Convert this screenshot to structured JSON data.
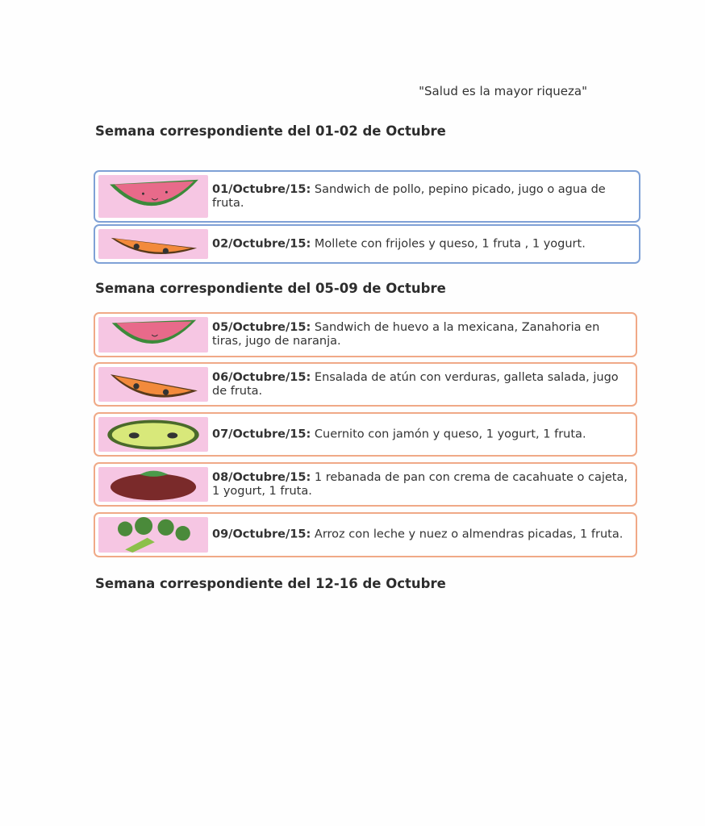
{
  "quote": "\"Salud es la mayor riqueza\"",
  "weeks": [
    {
      "heading": "Semana correspondiente del 01-02 de Octubre",
      "days": [
        {
          "date": "01/Octubre/15:",
          "menu": " Sandwich de pollo, pepino picado, jugo o agua de fruta.",
          "icon": "watermelon-icon"
        },
        {
          "date": "02/Octubre/15:",
          "menu": " Mollete con frijoles y queso, 1 fruta , 1 yogurt.",
          "icon": "orange-slice-icon"
        }
      ]
    },
    {
      "heading": "Semana correspondiente del 05-09 de Octubre",
      "days": [
        {
          "date": "05/Octubre/15:",
          "menu": " Sandwich de huevo a la mexicana, Zanahoria en tiras, jugo de naranja.",
          "icon": "watermelon-icon"
        },
        {
          "date": "06/Octubre/15:",
          "menu": " Ensalada de atún con verduras, galleta salada, jugo de fruta.",
          "icon": "orange-slice-icon"
        },
        {
          "date": "07/Octubre/15:",
          "menu": " Cuernito con jamón y queso, 1 yogurt, 1 fruta.",
          "icon": "lime-slice-icon"
        },
        {
          "date": "08/Octubre/15:",
          "menu": " 1 rebanada de pan con crema de cacahuate o cajeta, 1 yogurt, 1 fruta.",
          "icon": "tomato-icon"
        },
        {
          "date": "09/Octubre/15:",
          "menu": " Arroz con leche y nuez o almendras picadas, 1 fruta.",
          "icon": "broccoli-icon"
        }
      ]
    },
    {
      "heading": "Semana correspondiente del 12-16 de Octubre",
      "days": []
    }
  ],
  "colors": {
    "week1_border": "#7fa1d6",
    "week2_border": "#f0a987",
    "icon_bg": "#f6c6e3"
  }
}
